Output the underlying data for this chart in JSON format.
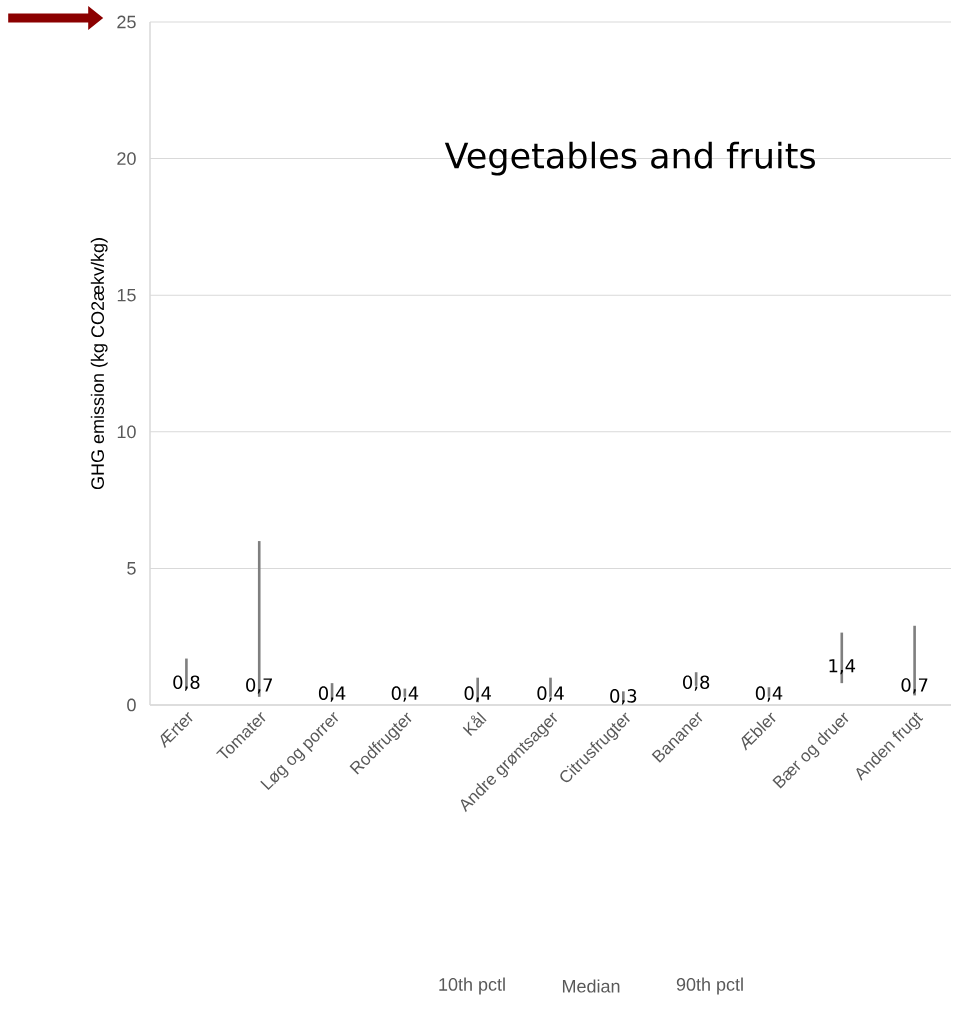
{
  "chart_data": {
    "type": "bar",
    "title": "Vegetables and fruits",
    "ylabel": "GHG emission (kg CO2ækv/kg)",
    "categories": [
      "Ærter",
      "Tomater",
      "Løg og porrer",
      "Rodfrugter",
      "Kål",
      "Andre grøntsager",
      "Citrusfrugter",
      "Bananer",
      "Æbler",
      "Bær og druer",
      "Anden frugt"
    ],
    "base": [
      0.6,
      0.3,
      0.2,
      0.3,
      0.1,
      0.3,
      0.1,
      0.7,
      0.3,
      0.8,
      0.35
    ],
    "values": [
      1.1,
      5.7,
      0.6,
      0.3,
      0.9,
      0.7,
      0.4,
      0.5,
      0.35,
      1.85,
      2.55
    ],
    "color": "#7f7f7f",
    "annotations": [
      {
        "text": "0,8",
        "x": "Ærter",
        "y": 0.8
      },
      {
        "text": "0,7",
        "x": "Tomater",
        "y": 0.7
      },
      {
        "text": "0,4",
        "x": "Løg og porrer",
        "y": 0.4
      },
      {
        "text": "0,4",
        "x": "Rodfrugter",
        "y": 0.4
      },
      {
        "text": "0,4",
        "x": "Kål",
        "y": 0.4
      },
      {
        "text": "0,4",
        "x": "Andre grøntsager",
        "y": 0.4
      },
      {
        "text": "0,3",
        "x": "Citrusfrugter",
        "y": 0.3
      },
      {
        "text": "0,8",
        "x": "Bananer",
        "y": 0.8
      },
      {
        "text": "0,4",
        "x": "Æbler",
        "y": 0.4
      },
      {
        "text": "1,4",
        "x": "Bær og druer",
        "y": 1.4
      },
      {
        "text": "0,7",
        "x": "Anden frugt",
        "y": 0.7
      },
      "10th pctl",
      "Median",
      "90th pctl"
    ],
    "ylim": [
      0,
      25
    ],
    "yticks": [
      0,
      5,
      10,
      15,
      20,
      25
    ],
    "grid": "y"
  }
}
